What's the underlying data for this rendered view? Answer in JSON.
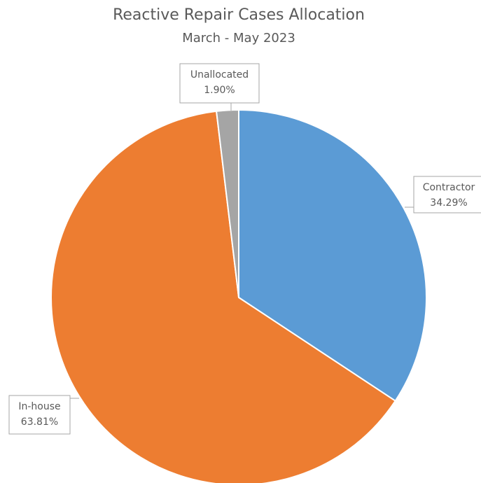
{
  "chart_data": {
    "type": "pie",
    "title": "Reactive Repair Cases Allocation",
    "subtitle": "March - May 2023",
    "categories": [
      "Contractor",
      "In-house",
      "Unallocated"
    ],
    "values": [
      34.29,
      63.81,
      1.9
    ],
    "value_labels": [
      "34.29%",
      "63.81%",
      "1.90%"
    ],
    "colors": [
      "#5b9bd5",
      "#ed7d31",
      "#a5a5a5"
    ]
  }
}
